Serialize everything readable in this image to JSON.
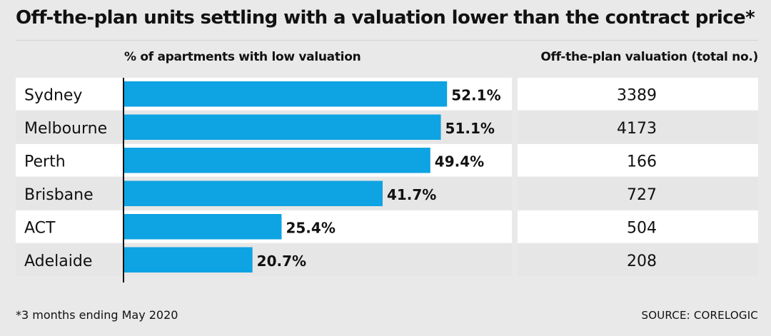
{
  "title": "Off-the-plan units settling with a valuation lower than the contract price*",
  "left_header": "% of apartments with low valuation",
  "right_header": "Off-the-plan valuation (total no.)",
  "footnote": "*3 months ending May 2020",
  "source": "SOURCE: CORELOGIC",
  "colors": {
    "bar": "#0ea3e2",
    "row_light": "#ffffff",
    "row_dark": "#e6e6e6",
    "background": "#e9e9e9",
    "axis": "#111111"
  },
  "chart_data": {
    "type": "bar",
    "orientation": "horizontal",
    "categories": [
      "Sydney",
      "Melbourne",
      "Perth",
      "Brisbane",
      "ACT",
      "Adelaide"
    ],
    "values": [
      52.1,
      51.1,
      49.4,
      41.7,
      25.4,
      20.7
    ],
    "value_labels": [
      "52.1%",
      "51.1%",
      "49.4%",
      "41.7%",
      "25.4%",
      "20.7%"
    ],
    "xlim": [
      0,
      100
    ],
    "unit": "%",
    "grid": false,
    "legend": "none",
    "table": {
      "header": "Off-the-plan valuation (total no.)",
      "values": [
        3389,
        4173,
        166,
        727,
        504,
        208
      ]
    }
  }
}
